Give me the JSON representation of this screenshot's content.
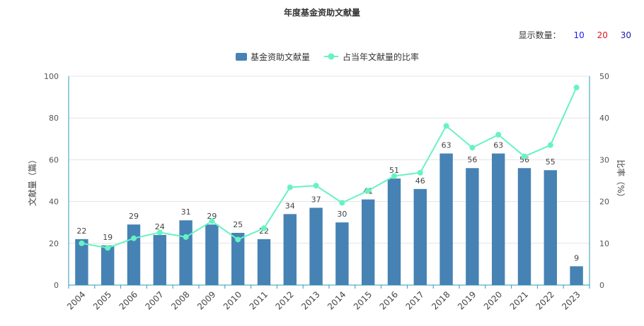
{
  "title": "年度基金资助文献量",
  "display_count": {
    "label": "显示数量：",
    "options": [
      {
        "text": "10",
        "color": "#1a1aff"
      },
      {
        "text": "20",
        "color": "#e0141e"
      },
      {
        "text": "30",
        "color": "#1a1aa8"
      }
    ]
  },
  "colors": {
    "bar": "#4682b4",
    "line": "#67f2c4",
    "axis": "#2f9ab8",
    "grid": "#e3e3e3"
  },
  "chart_data": {
    "type": "bar",
    "title": "年度基金资助文献量",
    "categories": [
      "2004",
      "2005",
      "2006",
      "2007",
      "2008",
      "2009",
      "2010",
      "2011",
      "2012",
      "2013",
      "2014",
      "2015",
      "2016",
      "2017",
      "2018",
      "2019",
      "2020",
      "2021",
      "2022",
      "2023"
    ],
    "series": [
      {
        "name": "基金资助文献量",
        "type": "bar",
        "axis": "left",
        "values": [
          22,
          19,
          29,
          24,
          31,
          29,
          25,
          22,
          34,
          37,
          30,
          41,
          51,
          46,
          63,
          56,
          63,
          56,
          55,
          9
        ]
      },
      {
        "name": "占当年文献量的比率",
        "type": "line",
        "axis": "right",
        "values": [
          10.0,
          8.9,
          11.2,
          12.6,
          11.5,
          15.3,
          10.9,
          13.6,
          23.4,
          23.8,
          19.7,
          22.6,
          26.1,
          26.9,
          38.1,
          32.9,
          36.0,
          30.8,
          33.5,
          47.3
        ]
      }
    ],
    "ylabel": "文献量（篇）",
    "ylabel_right": "比率（%）",
    "ylim": [
      0,
      100
    ],
    "ylim_right": [
      0,
      50
    ],
    "yticks": [
      "0",
      "20",
      "40",
      "60",
      "80",
      "100"
    ],
    "yticks_right": [
      "0",
      "10",
      "20",
      "30",
      "40",
      "50"
    ],
    "grid": true,
    "legend": "top-center"
  }
}
